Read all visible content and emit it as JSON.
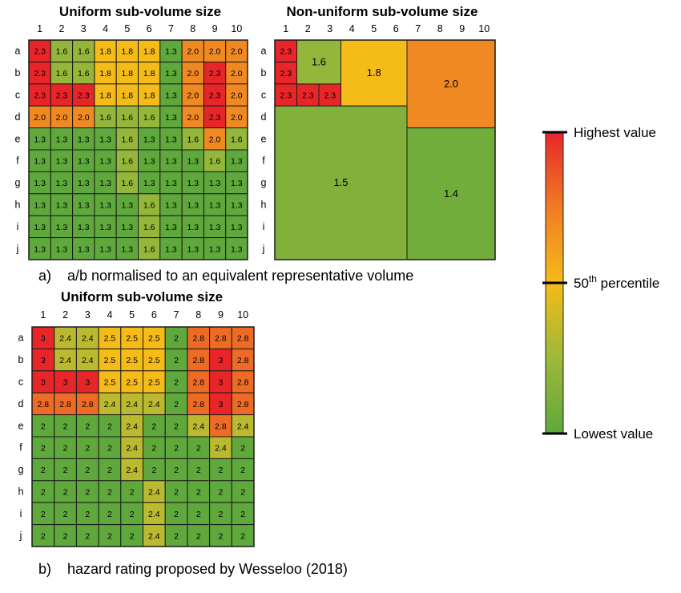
{
  "chart_data": [
    {
      "type": "heatmap",
      "title": "Uniform sub-volume size",
      "columns": [
        "1",
        "2",
        "3",
        "4",
        "5",
        "6",
        "7",
        "8",
        "9",
        "10"
      ],
      "rows": [
        "a",
        "b",
        "c",
        "d",
        "e",
        "f",
        "g",
        "h",
        "i",
        "j"
      ],
      "values": [
        [
          "2.3",
          "1.6",
          "1.6",
          "1.8",
          "1.8",
          "1.8",
          "1.3",
          "2.0",
          "2.0",
          "2.0"
        ],
        [
          "2.3",
          "1.6",
          "1.6",
          "1.8",
          "1.8",
          "1.8",
          "1.3",
          "2.0",
          "2.3",
          "2.0"
        ],
        [
          "2.3",
          "2.3",
          "2.3",
          "1.8",
          "1.8",
          "1.8",
          "1.3",
          "2.0",
          "2.3",
          "2.0"
        ],
        [
          "2.0",
          "2.0",
          "2.0",
          "1.6",
          "1.6",
          "1.6",
          "1.3",
          "2.0",
          "2.3",
          "2.0"
        ],
        [
          "1.3",
          "1.3",
          "1.3",
          "1.3",
          "1.6",
          "1.3",
          "1.3",
          "1.6",
          "2.0",
          "1.6"
        ],
        [
          "1.3",
          "1.3",
          "1.3",
          "1.3",
          "1.6",
          "1.3",
          "1.3",
          "1.3",
          "1.6",
          "1.3"
        ],
        [
          "1.3",
          "1.3",
          "1.3",
          "1.3",
          "1.6",
          "1.3",
          "1.3",
          "1.3",
          "1.3",
          "1.3"
        ],
        [
          "1.3",
          "1.3",
          "1.3",
          "1.3",
          "1.3",
          "1.6",
          "1.3",
          "1.3",
          "1.3",
          "1.3"
        ],
        [
          "1.3",
          "1.3",
          "1.3",
          "1.3",
          "1.3",
          "1.6",
          "1.3",
          "1.3",
          "1.3",
          "1.3"
        ],
        [
          "1.3",
          "1.3",
          "1.3",
          "1.3",
          "1.3",
          "1.6",
          "1.3",
          "1.3",
          "1.3",
          "1.3"
        ]
      ],
      "vmin": 1.3,
      "vmax": 2.3,
      "colormap": "green-yellow-red"
    },
    {
      "type": "heatmap",
      "title": "Non-uniform sub-volume size",
      "columns": [
        "1",
        "2",
        "3",
        "4",
        "5",
        "6",
        "7",
        "8",
        "9",
        "10"
      ],
      "rows": [
        "a",
        "b",
        "c",
        "d",
        "e",
        "f",
        "g",
        "h",
        "i",
        "j"
      ],
      "blocks": [
        {
          "rows": [
            "a",
            "a"
          ],
          "cols": [
            "1",
            "1"
          ],
          "value": "2.3"
        },
        {
          "rows": [
            "b",
            "b"
          ],
          "cols": [
            "1",
            "1"
          ],
          "value": "2.3"
        },
        {
          "rows": [
            "c",
            "c"
          ],
          "cols": [
            "1",
            "1"
          ],
          "value": "2.3"
        },
        {
          "rows": [
            "c",
            "c"
          ],
          "cols": [
            "2",
            "2"
          ],
          "value": "2.3"
        },
        {
          "rows": [
            "c",
            "c"
          ],
          "cols": [
            "3",
            "3"
          ],
          "value": "2.3"
        },
        {
          "rows": [
            "a",
            "b"
          ],
          "cols": [
            "2",
            "3"
          ],
          "value": "1.6"
        },
        {
          "rows": [
            "a",
            "c"
          ],
          "cols": [
            "4",
            "6"
          ],
          "value": "1.8"
        },
        {
          "rows": [
            "a",
            "d"
          ],
          "cols": [
            "7",
            "10"
          ],
          "value": "2.0"
        },
        {
          "rows": [
            "d",
            "j"
          ],
          "cols": [
            "1",
            "6"
          ],
          "value": "1.5"
        },
        {
          "rows": [
            "e",
            "j"
          ],
          "cols": [
            "7",
            "10"
          ],
          "value": "1.4"
        }
      ],
      "vmin": 1.3,
      "vmax": 2.3,
      "colormap": "green-yellow-red"
    },
    {
      "type": "heatmap",
      "title": "Uniform sub-volume size",
      "columns": [
        "1",
        "2",
        "3",
        "4",
        "5",
        "6",
        "7",
        "8",
        "9",
        "10"
      ],
      "rows": [
        "a",
        "b",
        "c",
        "d",
        "e",
        "f",
        "g",
        "h",
        "i",
        "j"
      ],
      "values": [
        [
          "3",
          "2.4",
          "2.4",
          "2.5",
          "2.5",
          "2.5",
          "2",
          "2.8",
          "2.8",
          "2.8"
        ],
        [
          "3",
          "2.4",
          "2.4",
          "2.5",
          "2.5",
          "2.5",
          "2",
          "2.8",
          "3",
          "2.8"
        ],
        [
          "3",
          "3",
          "3",
          "2.5",
          "2.5",
          "2.5",
          "2",
          "2.8",
          "3",
          "2.8"
        ],
        [
          "2.8",
          "2.8",
          "2.8",
          "2.4",
          "2.4",
          "2.4",
          "2",
          "2.8",
          "3",
          "2.8"
        ],
        [
          "2",
          "2",
          "2",
          "2",
          "2.4",
          "2",
          "2",
          "2.4",
          "2.8",
          "2.4"
        ],
        [
          "2",
          "2",
          "2",
          "2",
          "2.4",
          "2",
          "2",
          "2",
          "2.4",
          "2"
        ],
        [
          "2",
          "2",
          "2",
          "2",
          "2.4",
          "2",
          "2",
          "2",
          "2",
          "2"
        ],
        [
          "2",
          "2",
          "2",
          "2",
          "2",
          "2.4",
          "2",
          "2",
          "2",
          "2"
        ],
        [
          "2",
          "2",
          "2",
          "2",
          "2",
          "2.4",
          "2",
          "2",
          "2",
          "2"
        ],
        [
          "2",
          "2",
          "2",
          "2",
          "2",
          "2.4",
          "2",
          "2",
          "2",
          "2"
        ]
      ],
      "vmin": 2,
      "vmax": 3,
      "colormap": "green-yellow-red"
    }
  ],
  "captions": {
    "a": "a)    a/b normalised to an equivalent representative volume",
    "b": "b)    hazard rating proposed by Wesseloo (2018)"
  },
  "legend": {
    "high": "Highest value",
    "mid_base": "50",
    "mid_sup": "th",
    "mid_rest": " percentile",
    "low": "Lowest value"
  },
  "colors": {
    "low": "#5fa83c",
    "low_mid": "#9db83a",
    "mid": "#f5bb19",
    "high_mid": "#f07c24",
    "high": "#e8262a",
    "grid": "#1a1a1a"
  }
}
